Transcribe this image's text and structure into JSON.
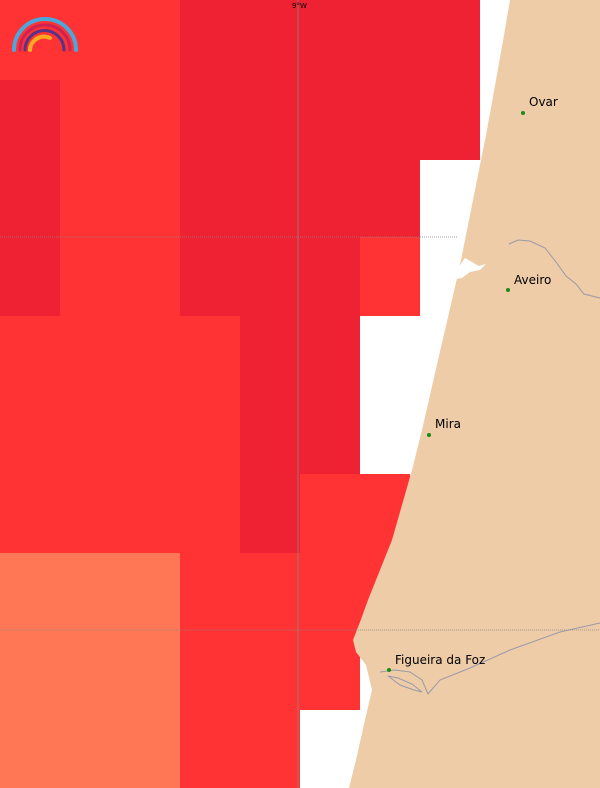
{
  "map": {
    "longitude_label": "9°W",
    "colors": {
      "sea_dark_red": "#ee2233",
      "sea_red": "#ff3333",
      "sea_orange": "#ff7755",
      "land": "#eecca8",
      "no_data": "#ffffff",
      "gridline": "#888888",
      "river": "#9a9aa8",
      "city_marker": "#1a8a1a"
    },
    "places": [
      {
        "name": "Ovar"
      },
      {
        "name": "Aveiro"
      },
      {
        "name": "Mira"
      },
      {
        "name": "Figueira da Foz"
      }
    ],
    "logo": {
      "description_icon": "rainbow-logo-icon"
    }
  }
}
